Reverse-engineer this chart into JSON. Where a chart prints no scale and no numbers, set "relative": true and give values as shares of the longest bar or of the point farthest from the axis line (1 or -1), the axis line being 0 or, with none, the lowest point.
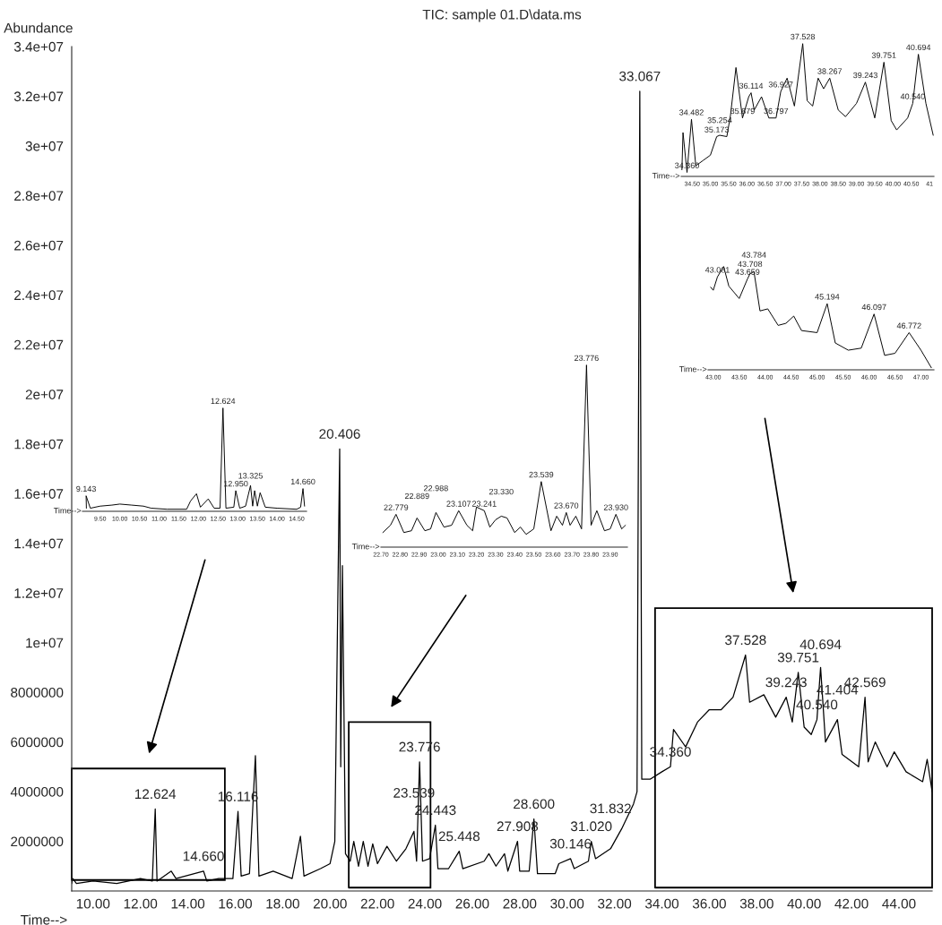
{
  "chart_data": [
    {
      "type": "line",
      "title": "TIC: sample 01.D\\data.ms",
      "xlabel": "Time-->",
      "ylabel": "Abundance",
      "series": [
        {
          "color": "#000000",
          "x": [
            9.1,
            9.143,
            9.3,
            10.0,
            11.0,
            12.0,
            12.5,
            12.624,
            12.7,
            13.3,
            13.5,
            14.66,
            14.8,
            15.3,
            15.9,
            16.116,
            16.25,
            16.6,
            16.85,
            17.0,
            17.6,
            18.4,
            18.75,
            18.9,
            19.6,
            20.0,
            20.2,
            20.406,
            20.45,
            20.52,
            20.65,
            20.85,
            21.0,
            21.2,
            21.4,
            21.6,
            21.8,
            22.0,
            22.4,
            22.8,
            23.2,
            23.539,
            23.65,
            23.776,
            23.9,
            24.2,
            24.443,
            24.55,
            25.0,
            25.448,
            25.6,
            26.5,
            26.7,
            27.0,
            27.36,
            27.5,
            27.908,
            28.0,
            28.4,
            28.6,
            28.75,
            29.5,
            29.65,
            30.146,
            30.3,
            30.9,
            31.02,
            31.2,
            31.832,
            32.3,
            32.8,
            32.95,
            33.067,
            33.15,
            33.5,
            34.0,
            34.36,
            34.488,
            35.0,
            35.5,
            36.0,
            36.5,
            37.0,
            37.528,
            37.7,
            38.3,
            38.8,
            39.243,
            39.5,
            39.751,
            40.0,
            40.3,
            40.54,
            40.694,
            40.9,
            41.404,
            41.6,
            42.3,
            42.569,
            42.7,
            43.0,
            43.2,
            43.5,
            43.8,
            44.3,
            45.0,
            45.19,
            45.4
          ],
          "values": [
            300000,
            500000,
            300000,
            400000,
            300000,
            500000,
            400000,
            3300000,
            400000,
            800000,
            500000,
            800000,
            400000,
            500000,
            500000,
            3200000,
            600000,
            700000,
            5450000,
            600000,
            800000,
            500000,
            2200000,
            600000,
            900000,
            1100000,
            2000000,
            17800000,
            5000000,
            13100000,
            1500000,
            1200000,
            2000000,
            1000000,
            2000000,
            1000000,
            1900000,
            1100000,
            1800000,
            1200000,
            1700000,
            2400000,
            1200000,
            5200000,
            1200000,
            1300000,
            2650000,
            900000,
            900000,
            1600000,
            900000,
            1200000,
            1500000,
            1000000,
            1500000,
            800000,
            2000000,
            800000,
            800000,
            2900000,
            700000,
            700000,
            1100000,
            1300000,
            900000,
            1200000,
            2000000,
            1300000,
            1700000,
            2500000,
            3500000,
            4000000,
            32200000,
            4500000,
            4500000,
            4800000,
            5000000,
            6500000,
            5800000,
            6800000,
            7300000,
            7300000,
            7800000,
            9500000,
            7600000,
            7900000,
            7000000,
            7800000,
            6800000,
            8800000,
            6600000,
            6300000,
            6900000,
            9000000,
            6000000,
            6900000,
            5500000,
            5000000,
            7800000,
            5200000,
            6000000,
            5600000,
            5000000,
            5600000,
            4800000,
            4400000,
            5300000,
            4000000
          ]
        }
      ],
      "xlim": [
        9.1,
        45.4
      ],
      "ylim": [
        0,
        34000000
      ],
      "xticks": [
        {
          "value": 10,
          "label": "10.00"
        },
        {
          "value": 12,
          "label": "12.00"
        },
        {
          "value": 14,
          "label": "14.00"
        },
        {
          "value": 16,
          "label": "16.00"
        },
        {
          "value": 18,
          "label": "18.00"
        },
        {
          "value": 20,
          "label": "20.00"
        },
        {
          "value": 22,
          "label": "22.00"
        },
        {
          "value": 24,
          "label": "24.00"
        },
        {
          "value": 26,
          "label": "26.00"
        },
        {
          "value": 28,
          "label": "28.00"
        },
        {
          "value": 30,
          "label": "30.00"
        },
        {
          "value": 32,
          "label": "32.00"
        },
        {
          "value": 34,
          "label": "34.00"
        },
        {
          "value": 36,
          "label": "36.00"
        },
        {
          "value": 38,
          "label": "38.00"
        },
        {
          "value": 40,
          "label": "40.00"
        },
        {
          "value": 42,
          "label": "42.00"
        },
        {
          "value": 44,
          "label": "44.00"
        }
      ],
      "yticks": [
        2000000,
        4000000,
        6000000,
        8000000,
        {
          "value": 10000000,
          "label": "1e+07"
        },
        {
          "value": 12000000,
          "label": "1.2e+07"
        },
        {
          "value": 14000000,
          "label": "1.4e+07"
        },
        {
          "value": 16000000,
          "label": "1.6e+07"
        },
        {
          "value": 18000000,
          "label": "1.8e+07"
        },
        {
          "value": 20000000,
          "label": "2e+07"
        },
        {
          "value": 22000000,
          "label": "2.2e+07"
        },
        {
          "value": 24000000,
          "label": "2.4e+07"
        },
        {
          "value": 26000000,
          "label": "2.6e+07"
        },
        {
          "value": 28000000,
          "label": "2.8e+07"
        },
        {
          "value": 30000000,
          "label": "3e+07"
        },
        {
          "value": 32000000,
          "label": "3.2e+07"
        },
        {
          "value": 34000000,
          "label": "3.4e+07"
        }
      ],
      "annotations": [
        {
          "text": "12.624",
          "x": 12.624,
          "y": 3300000
        },
        {
          "text": "14.660",
          "x": 14.66,
          "y": 800000
        },
        {
          "text": "16.116",
          "x": 16.116,
          "y": 3200000
        },
        {
          "text": "20.406",
          "x": 20.406,
          "y": 17800000
        },
        {
          "text": "23.776",
          "x": 23.776,
          "y": 5200000
        },
        {
          "text": "24.443",
          "x": 24.443,
          "y": 2650000
        },
        {
          "text": "23.539",
          "x": 23.539,
          "y": 2400000
        },
        {
          "text": "25.448",
          "x": 25.448,
          "y": 1600000
        },
        {
          "text": "27.908",
          "x": 27.908,
          "y": 2000000
        },
        {
          "text": "28.600",
          "x": 28.6,
          "y": 2900000
        },
        {
          "text": "30.146",
          "x": 30.146,
          "y": 1300000
        },
        {
          "text": "31.020",
          "x": 31.02,
          "y": 2000000
        },
        {
          "text": "31.832",
          "x": 31.832,
          "y": 1700000
        },
        {
          "text": "33.067",
          "x": 33.067,
          "y": 32200000
        },
        {
          "text": "34.360",
          "x": 34.36,
          "y": 5000000
        },
        {
          "text": "37.528",
          "x": 37.528,
          "y": 9500000
        },
        {
          "text": "39.243",
          "x": 39.243,
          "y": 7800000
        },
        {
          "text": "39.751",
          "x": 39.751,
          "y": 8800000
        },
        {
          "text": "40.694",
          "x": 40.694,
          "y": 9000000
        },
        {
          "text": "40.540",
          "x": 40.54,
          "y": 6900000
        },
        {
          "text": "41.404",
          "x": 41.404,
          "y": 6900000
        },
        {
          "text": "42.569",
          "x": 42.569,
          "y": 7800000
        }
      ]
    },
    {
      "type": "line",
      "relative": true,
      "xlabel": "Time-->",
      "series": [
        {
          "color": "#000000",
          "x": [
            9.15,
            9.143,
            9.25,
            9.5,
            9.8,
            10.0,
            10.3,
            10.6,
            10.8,
            11.2,
            11.7,
            11.8,
            11.95,
            12.05,
            12.25,
            12.4,
            12.55,
            12.624,
            12.7,
            12.9,
            12.95,
            13.05,
            13.2,
            13.325,
            13.38,
            13.43,
            13.5,
            13.57,
            13.7,
            14.0,
            14.5,
            14.6,
            14.66,
            14.7
          ],
          "values": [
            0.03,
            0.15,
            0.03,
            0.05,
            0.06,
            0.07,
            0.06,
            0.05,
            0.03,
            0.02,
            0.02,
            0.1,
            0.17,
            0.04,
            0.12,
            0.03,
            0.03,
            1.0,
            0.03,
            0.04,
            0.2,
            0.03,
            0.05,
            0.25,
            0.05,
            0.2,
            0.05,
            0.18,
            0.04,
            0.03,
            0.02,
            0.04,
            0.22,
            0.05
          ]
        }
      ],
      "xlim": [
        9.05,
        14.75
      ],
      "xticks": [
        {
          "value": 9.5,
          "label": "9.50"
        },
        {
          "value": 10,
          "label": "10.00"
        },
        {
          "value": 10.5,
          "label": "10.50"
        },
        {
          "value": 11,
          "label": "11.00"
        },
        {
          "value": 11.5,
          "label": "11.50"
        },
        {
          "value": 12,
          "label": "12.00"
        },
        {
          "value": 12.5,
          "label": "12.50"
        },
        {
          "value": 13,
          "label": "13.00"
        },
        {
          "value": 13.5,
          "label": "13.50"
        },
        {
          "value": 14,
          "label": "14.00"
        },
        {
          "value": 14.5,
          "label": "14.50"
        }
      ],
      "annotations": [
        {
          "text": "9.143",
          "x": 9.143,
          "y": 0.15
        },
        {
          "text": "12.624",
          "x": 12.624,
          "y": 1.0
        },
        {
          "text": "12.950",
          "x": 12.95,
          "y": 0.2
        },
        {
          "text": "13.325",
          "x": 13.325,
          "y": 0.25
        },
        {
          "text": "14.660",
          "x": 14.66,
          "y": 0.22
        }
      ]
    },
    {
      "type": "line",
      "relative": true,
      "xlabel": "Time-->",
      "series": [
        {
          "color": "#000000",
          "x": [
            22.71,
            22.75,
            22.779,
            22.82,
            22.86,
            22.889,
            22.93,
            22.96,
            22.988,
            23.03,
            23.07,
            23.107,
            23.15,
            23.18,
            23.2,
            23.241,
            23.27,
            23.3,
            23.33,
            23.36,
            23.4,
            23.43,
            23.46,
            23.5,
            23.539,
            23.59,
            23.62,
            23.65,
            23.67,
            23.69,
            23.72,
            23.75,
            23.776,
            23.8,
            23.83,
            23.87,
            23.9,
            23.93,
            23.96,
            23.98
          ],
          "values": [
            0.08,
            0.12,
            0.18,
            0.08,
            0.09,
            0.16,
            0.09,
            0.1,
            0.19,
            0.11,
            0.12,
            0.2,
            0.12,
            0.09,
            0.22,
            0.2,
            0.11,
            0.15,
            0.17,
            0.16,
            0.08,
            0.11,
            0.07,
            0.1,
            0.36,
            0.09,
            0.17,
            0.12,
            0.19,
            0.12,
            0.17,
            0.1,
            1.0,
            0.12,
            0.2,
            0.09,
            0.1,
            0.18,
            0.1,
            0.12
          ]
        }
      ],
      "xlim": [
        22.7,
        23.99
      ],
      "xticks": [
        {
          "value": 22.7,
          "label": "22.70"
        },
        {
          "value": 22.8,
          "label": "22.80"
        },
        {
          "value": 22.9,
          "label": "22.90"
        },
        {
          "value": 23.0,
          "label": "23.00"
        },
        {
          "value": 23.1,
          "label": "23.10"
        },
        {
          "value": 23.2,
          "label": "23.20"
        },
        {
          "value": 23.3,
          "label": "23.30"
        },
        {
          "value": 23.4,
          "label": "23.40"
        },
        {
          "value": 23.5,
          "label": "23.50"
        },
        {
          "value": 23.6,
          "label": "23.60"
        },
        {
          "value": 23.7,
          "label": "23.70"
        },
        {
          "value": 23.8,
          "label": "23.80"
        },
        {
          "value": 23.9,
          "label": "23.90"
        }
      ],
      "annotations": [
        {
          "text": "22.779",
          "x": 22.779,
          "y": 0.18
        },
        {
          "text": "22.889",
          "x": 22.889,
          "y": 0.16
        },
        {
          "text": "22.988",
          "x": 22.988,
          "y": 0.19
        },
        {
          "text": "23.107",
          "x": 23.107,
          "y": 0.2
        },
        {
          "text": "23.241",
          "x": 23.241,
          "y": 0.2
        },
        {
          "text": "23.330",
          "x": 23.33,
          "y": 0.17
        },
        {
          "text": "23.539",
          "x": 23.539,
          "y": 0.36
        },
        {
          "text": "23.670",
          "x": 23.67,
          "y": 0.19
        },
        {
          "text": "23.776",
          "x": 23.776,
          "y": 1.0
        },
        {
          "text": "23.930",
          "x": 23.93,
          "y": 0.18
        }
      ]
    },
    {
      "type": "line",
      "relative": true,
      "xlabel": "Time-->",
      "series": [
        {
          "color": "#000000",
          "x": [
            34.22,
            34.25,
            34.36,
            34.482,
            34.6,
            34.8,
            35.0,
            35.173,
            35.254,
            35.45,
            35.55,
            35.7,
            35.879,
            36.05,
            36.114,
            36.2,
            36.4,
            36.6,
            36.797,
            36.927,
            37.1,
            37.3,
            37.528,
            37.65,
            37.8,
            37.95,
            38.1,
            38.267,
            38.5,
            38.7,
            39.0,
            39.243,
            39.5,
            39.751,
            39.95,
            40.1,
            40.4,
            40.54,
            40.694,
            40.9,
            41.1
          ],
          "values": [
            0.05,
            0.33,
            0.03,
            0.43,
            0.08,
            0.12,
            0.16,
            0.3,
            0.31,
            0.3,
            0.46,
            0.82,
            0.44,
            0.6,
            0.63,
            0.5,
            0.6,
            0.44,
            0.44,
            0.64,
            0.74,
            0.53,
            1.0,
            0.57,
            0.53,
            0.74,
            0.66,
            0.74,
            0.5,
            0.45,
            0.55,
            0.71,
            0.44,
            0.86,
            0.42,
            0.35,
            0.44,
            0.55,
            0.92,
            0.55,
            0.31
          ]
        }
      ],
      "xlim": [
        34.2,
        41.12
      ],
      "xticks": [
        {
          "value": 34.5,
          "label": "34.50"
        },
        {
          "value": 35,
          "label": "35.00"
        },
        {
          "value": 35.5,
          "label": "35.50"
        },
        {
          "value": 36,
          "label": "36.00"
        },
        {
          "value": 36.5,
          "label": "36.50"
        },
        {
          "value": 37,
          "label": "37.00"
        },
        {
          "value": 37.5,
          "label": "37.50"
        },
        {
          "value": 38,
          "label": "38.00"
        },
        {
          "value": 38.5,
          "label": "38.50"
        },
        {
          "value": 39,
          "label": "39.00"
        },
        {
          "value": 39.5,
          "label": "39.50"
        },
        {
          "value": 40,
          "label": "40.00"
        },
        {
          "value": 40.5,
          "label": "40.50"
        },
        {
          "value": 41,
          "label": "41"
        }
      ],
      "annotations": [
        {
          "text": "34.360",
          "x": 34.36,
          "y": 0.03
        },
        {
          "text": "34.482",
          "x": 34.482,
          "y": 0.43
        },
        {
          "text": "35.173",
          "x": 35.173,
          "y": 0.3
        },
        {
          "text": "35.254",
          "x": 35.254,
          "y": 0.31
        },
        {
          "text": "35.879",
          "x": 35.879,
          "y": 0.44
        },
        {
          "text": "36.114",
          "x": 36.114,
          "y": 0.63
        },
        {
          "text": "36.797",
          "x": 36.797,
          "y": 0.44
        },
        {
          "text": "36.927",
          "x": 36.927,
          "y": 0.64
        },
        {
          "text": "37.528",
          "x": 37.528,
          "y": 1.0
        },
        {
          "text": "38.267",
          "x": 38.267,
          "y": 0.74
        },
        {
          "text": "39.243",
          "x": 39.243,
          "y": 0.71
        },
        {
          "text": "39.751",
          "x": 39.751,
          "y": 0.86
        },
        {
          "text": "40.540",
          "x": 40.54,
          "y": 0.55
        },
        {
          "text": "40.694",
          "x": 40.694,
          "y": 0.92
        }
      ]
    },
    {
      "type": "line",
      "relative": true,
      "xlabel": "Time-->",
      "series": [
        {
          "color": "#000000",
          "x": [
            42.95,
            43.0,
            43.081,
            43.2,
            43.3,
            43.5,
            43.659,
            43.708,
            43.784,
            43.9,
            44.05,
            44.25,
            44.4,
            44.55,
            44.7,
            45.0,
            45.194,
            45.35,
            45.6,
            45.85,
            46.097,
            46.3,
            46.5,
            46.772,
            47.0,
            47.2
          ],
          "values": [
            0.8,
            0.77,
            0.9,
            1.0,
            0.81,
            0.69,
            0.88,
            0.93,
            0.95,
            0.57,
            0.59,
            0.43,
            0.45,
            0.52,
            0.38,
            0.36,
            0.64,
            0.26,
            0.19,
            0.21,
            0.54,
            0.14,
            0.16,
            0.36,
            0.19,
            0.02
          ]
        }
      ],
      "xlim": [
        42.9,
        47.25
      ],
      "xticks": [
        {
          "value": 43,
          "label": "43.00"
        },
        {
          "value": 43.5,
          "label": "43.50"
        },
        {
          "value": 44,
          "label": "44.00"
        },
        {
          "value": 44.5,
          "label": "44.50"
        },
        {
          "value": 45,
          "label": "45.00"
        },
        {
          "value": 45.5,
          "label": "45.50"
        },
        {
          "value": 46,
          "label": "46.00"
        },
        {
          "value": 46.5,
          "label": "46.50"
        },
        {
          "value": 47,
          "label": "47.00"
        }
      ],
      "annotations": [
        {
          "text": "43.081",
          "x": 43.081,
          "y": 0.9
        },
        {
          "text": "43.659",
          "x": 43.659,
          "y": 0.88
        },
        {
          "text": "43.708",
          "x": 43.708,
          "y": 0.93
        },
        {
          "text": "43.784",
          "x": 43.784,
          "y": 0.95
        },
        {
          "text": "45.194",
          "x": 45.194,
          "y": 0.64
        },
        {
          "text": "46.097",
          "x": 46.097,
          "y": 0.54
        },
        {
          "text": "46.772",
          "x": 46.772,
          "y": 0.36
        }
      ]
    }
  ]
}
